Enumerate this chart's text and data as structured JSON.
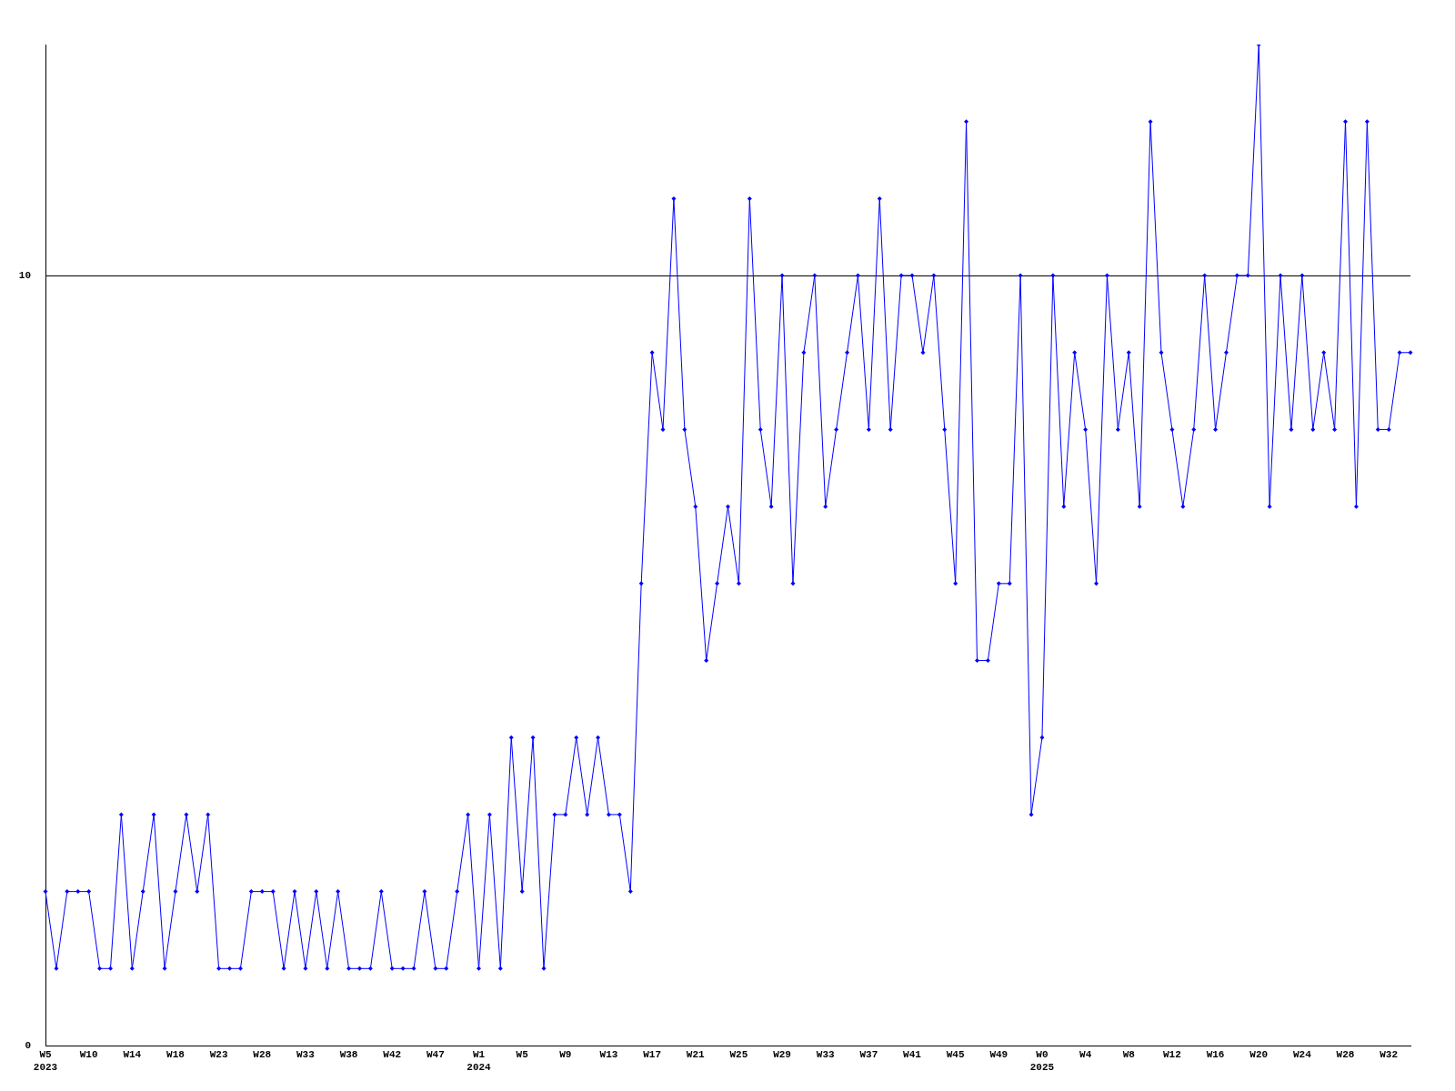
{
  "chart_data": {
    "type": "line",
    "categories": [
      "W5\n2023",
      null,
      null,
      null,
      "W10",
      null,
      null,
      null,
      "W14",
      null,
      null,
      null,
      "W18",
      null,
      null,
      null,
      "W23",
      null,
      null,
      null,
      "W28",
      null,
      null,
      null,
      "W33",
      null,
      null,
      null,
      "W38",
      null,
      null,
      null,
      "W42",
      null,
      null,
      null,
      "W47",
      null,
      null,
      null,
      "W1\n2024",
      null,
      null,
      null,
      "W5",
      null,
      null,
      null,
      "W9",
      null,
      null,
      null,
      "W13",
      null,
      null,
      null,
      "W17",
      null,
      null,
      null,
      "W21",
      null,
      null,
      null,
      "W25",
      null,
      null,
      null,
      "W29",
      null,
      null,
      null,
      "W33",
      null,
      null,
      null,
      "W37",
      null,
      null,
      null,
      "W41",
      null,
      null,
      null,
      "W45",
      null,
      null,
      null,
      "W49",
      null,
      null,
      null,
      "W0\n2025",
      null,
      null,
      null,
      "W4",
      null,
      null,
      null,
      "W8",
      null,
      null,
      null,
      "W12",
      null,
      null,
      null,
      "W16",
      null,
      null,
      null,
      "W20",
      null,
      null,
      null,
      "W24",
      null,
      null,
      null,
      "W28",
      null,
      null,
      null,
      "W32",
      null,
      null
    ],
    "series": [
      {
        "color": "#0000ff",
        "values": [
          2,
          1,
          2,
          2,
          2,
          1,
          1,
          3,
          1,
          2,
          3,
          1,
          2,
          3,
          2,
          3,
          1,
          1,
          1,
          2,
          2,
          2,
          1,
          2,
          1,
          2,
          1,
          2,
          1,
          1,
          1,
          2,
          1,
          1,
          1,
          2,
          1,
          1,
          2,
          3,
          1,
          3,
          1,
          4,
          2,
          4,
          1,
          3,
          3,
          4,
          3,
          4,
          3,
          3,
          2,
          6,
          9,
          8,
          11,
          8,
          7,
          5,
          6,
          7,
          6,
          11,
          8,
          7,
          10,
          6,
          9,
          10,
          7,
          8,
          9,
          10,
          8,
          11,
          8,
          10,
          10,
          9,
          10,
          8,
          6,
          12,
          5,
          5,
          6,
          6,
          10,
          3,
          4,
          10,
          7,
          9,
          8,
          6,
          10,
          8,
          9,
          7,
          12,
          9,
          8,
          7,
          8,
          10,
          8,
          9,
          10,
          10,
          13,
          7,
          10,
          8,
          10,
          8,
          9,
          8,
          12,
          7,
          12,
          8,
          8,
          9,
          9
        ]
      }
    ],
    "ylim": [
      0,
      13
    ],
    "yticks": [
      0,
      10
    ],
    "grid": "y",
    "legend": false,
    "marker": "diamond",
    "line_style": "solid"
  }
}
